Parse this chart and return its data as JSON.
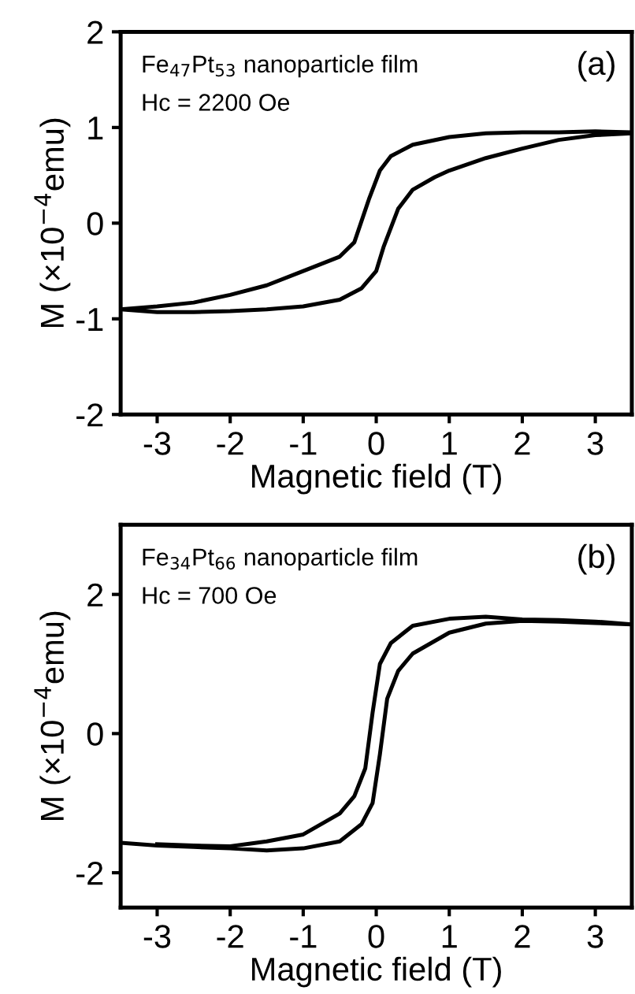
{
  "chart_data": [
    {
      "type": "line",
      "xlabel": "Magnetic field (T)",
      "ylabel": "M (×10$^{−4}$emu)",
      "annotations": [
        "Fe$_{47}$Pt$_{53}$ nanoparticle film",
        "Hc = 2200 Oe",
        "(a)"
      ],
      "xlim": [
        -3.5,
        3.5
      ],
      "xticks": [
        -3,
        -2,
        -1,
        0,
        1,
        2,
        3
      ],
      "ylim": [
        -2,
        2
      ],
      "yticks": [
        -2,
        -1,
        0,
        1,
        2
      ],
      "grid": false,
      "legend": false,
      "marker": "none",
      "line_style": "solid",
      "series": [
        {
          "color": "#000000",
          "x": [
            3.5,
            3,
            2.5,
            2,
            1.5,
            1,
            0.5,
            0.2,
            0.05,
            -0.1,
            -0.3,
            -0.5,
            -1,
            -1.5,
            -2,
            -2.5,
            -3,
            -3.5,
            -3,
            -2.5,
            -2,
            -1.5,
            -1,
            -0.5,
            -0.2,
            0,
            0.1,
            0.3,
            0.5,
            0.8,
            1,
            1.5,
            2,
            2.5,
            3,
            3.5
          ],
          "values": [
            0.95,
            0.96,
            0.95,
            0.95,
            0.94,
            0.9,
            0.82,
            0.7,
            0.55,
            0.25,
            -0.2,
            -0.35,
            -0.5,
            -0.65,
            -0.75,
            -0.83,
            -0.87,
            -0.9,
            -0.93,
            -0.93,
            -0.92,
            -0.9,
            -0.87,
            -0.8,
            -0.68,
            -0.5,
            -0.25,
            0.15,
            0.35,
            0.48,
            0.55,
            0.68,
            0.78,
            0.87,
            0.92,
            0.94
          ]
        }
      ]
    },
    {
      "type": "line",
      "xlabel": "Magnetic field (T)",
      "ylabel": "M (×10$^{−4}$emu)",
      "annotations": [
        "Fe$_{34}$Pt$_{66}$ nanoparticle film",
        "Hc = 700 Oe",
        "(b)"
      ],
      "xlim": [
        -3.5,
        3.5
      ],
      "xticks": [
        -3,
        -2,
        -1,
        0,
        1,
        2,
        3
      ],
      "ylim": [
        -2.5,
        3
      ],
      "yticks": [
        -2,
        0,
        2
      ],
      "grid": false,
      "legend": false,
      "marker": "none",
      "line_style": "solid",
      "series": [
        {
          "color": "#000000",
          "x": [
            -3.5,
            -3,
            -2.5,
            -2,
            -1.5,
            -1,
            -0.5,
            -0.2,
            -0.05,
            0.05,
            0.15,
            0.3,
            0.5,
            1,
            1.5,
            2,
            2.5,
            3,
            3.5,
            3,
            2.5,
            2,
            1.5,
            1,
            0.5,
            0.2,
            0.05,
            -0.05,
            -0.15,
            -0.3,
            -0.5,
            -1,
            -1.5,
            -2,
            -2.5,
            -3
          ],
          "values": [
            -1.57,
            -1.61,
            -1.63,
            -1.65,
            -1.68,
            -1.65,
            -1.55,
            -1.3,
            -1.0,
            -0.3,
            0.5,
            0.9,
            1.15,
            1.45,
            1.58,
            1.62,
            1.61,
            1.59,
            1.57,
            1.61,
            1.63,
            1.64,
            1.68,
            1.65,
            1.55,
            1.3,
            1.0,
            0.3,
            -0.5,
            -0.9,
            -1.15,
            -1.45,
            -1.55,
            -1.62,
            -1.61,
            -1.59
          ]
        }
      ]
    }
  ]
}
